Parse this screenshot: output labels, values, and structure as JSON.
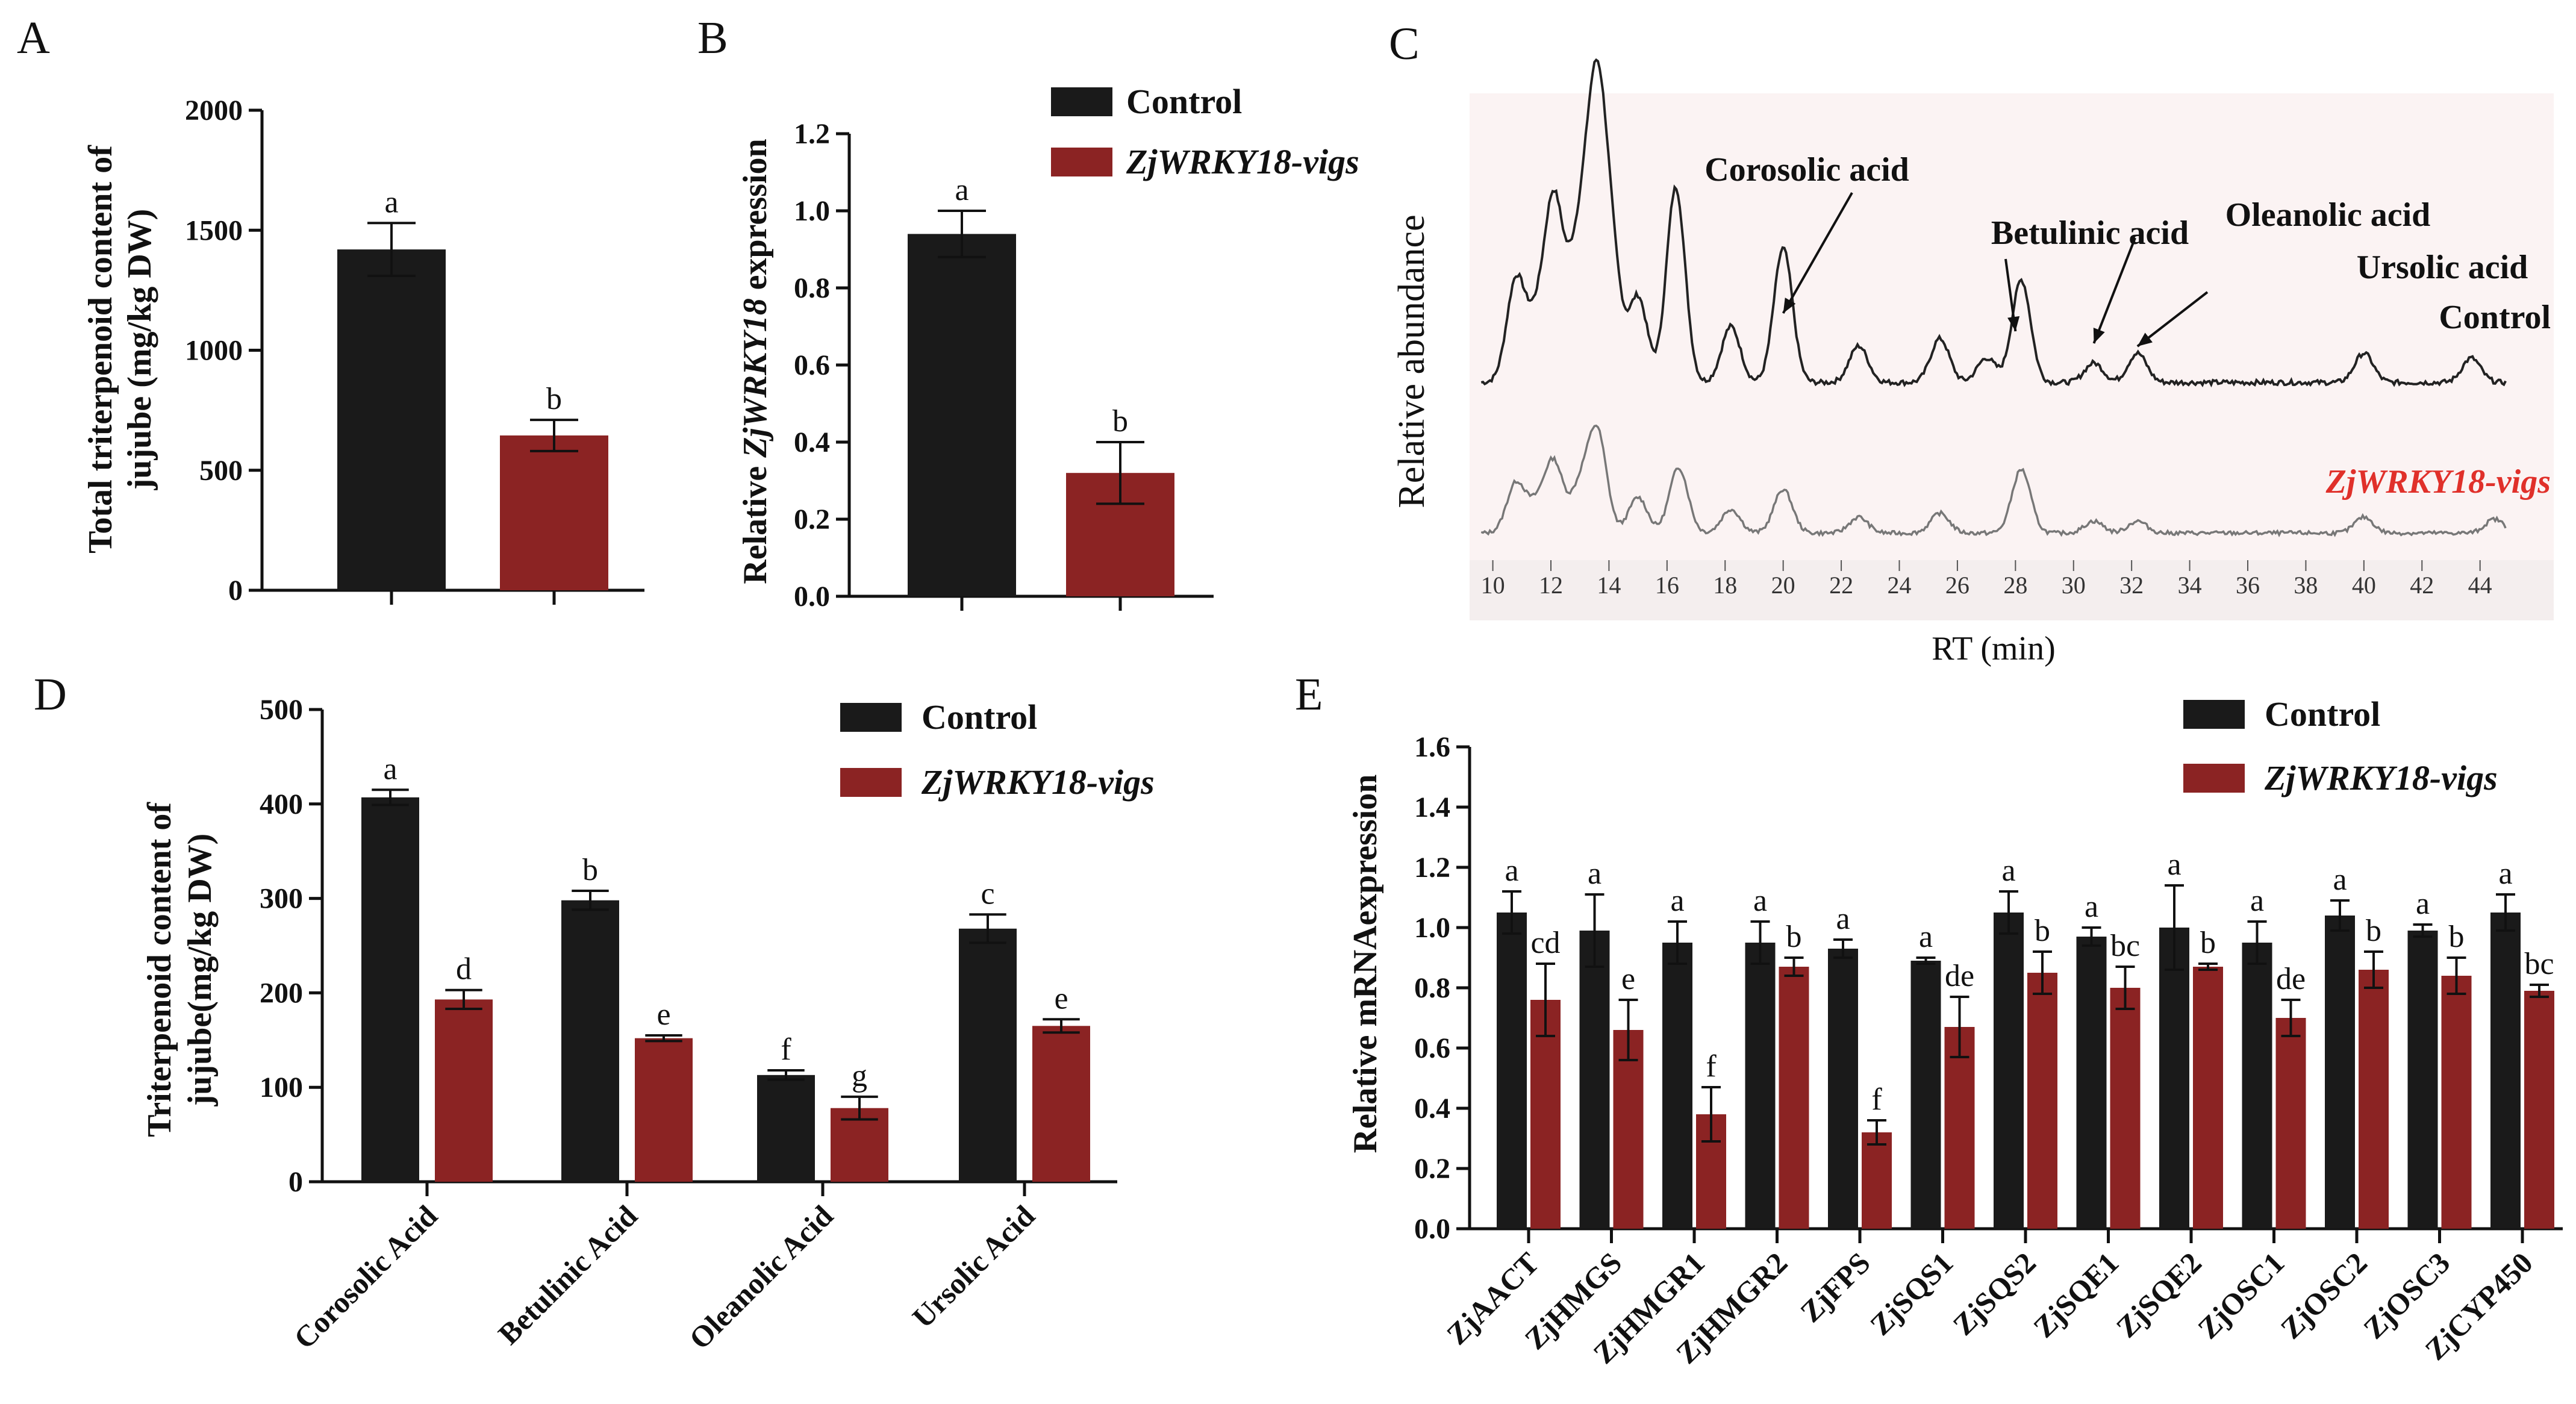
{
  "colors": {
    "control": "#1a1a1a",
    "vigs": "#8b2323",
    "vigs_label": "#e0302a",
    "trace_control": "#222222",
    "trace_vigs": "#777777",
    "chrom_bg": "#fbf3f3"
  },
  "legend": {
    "control": "Control",
    "vigs": "ZjWRKY18-vigs"
  },
  "chart_data": [
    {
      "panel": "A",
      "type": "bar",
      "categories": [
        "Control",
        "ZjWRKY18-vigs"
      ],
      "values": [
        1420,
        645
      ],
      "errors": [
        110,
        65
      ],
      "letters": [
        "a",
        "b"
      ],
      "ylabel_line1": "Total triterpenoid content of",
      "ylabel_line2": "jujube (mg/kg DW)",
      "ylim": [
        0,
        2000
      ],
      "yticks": [
        "0",
        "500",
        "1000",
        "1500",
        "2000"
      ]
    },
    {
      "panel": "B",
      "type": "bar",
      "categories": [
        "Control",
        "ZjWRKY18-vigs"
      ],
      "values": [
        0.94,
        0.32
      ],
      "errors": [
        0.06,
        0.08
      ],
      "letters": [
        "a",
        "b"
      ],
      "ylabel_prefix": "Relative ",
      "ylabel_gene": "ZjWRKY18",
      "ylabel_suffix": " expression",
      "ylim": [
        0,
        1.2
      ],
      "yticks": [
        "0.0",
        "0.2",
        "0.4",
        "0.6",
        "0.8",
        "1.0",
        "1.2"
      ]
    },
    {
      "panel": "C",
      "type": "line",
      "ylabel": "Relative abundance",
      "xlabel": "RT (min)",
      "xlim": [
        9.2,
        45.5
      ],
      "xticks": [
        "10",
        "12",
        "14",
        "16",
        "18",
        "20",
        "22",
        "24",
        "26",
        "28",
        "30",
        "32",
        "34",
        "36",
        "38",
        "40",
        "42",
        "44"
      ],
      "peak_labels": [
        "Corosolic acid",
        "Betulinic acid",
        "Oleanolic acid",
        "Ursolic acid"
      ],
      "peak_rt": [
        20.0,
        28.0,
        30.7,
        32.2
      ],
      "series": [
        {
          "name": "Control",
          "peaks": [
            [
              10.8,
              0.42
            ],
            [
              11.5,
              0.22
            ],
            [
              12.1,
              0.72
            ],
            [
              12.8,
              0.35
            ],
            [
              13.2,
              0.38
            ],
            [
              13.6,
              1.0
            ],
            [
              14.1,
              0.45
            ],
            [
              15.0,
              0.35
            ],
            [
              16.3,
              0.8
            ],
            [
              18.2,
              0.23
            ],
            [
              20.0,
              0.55
            ],
            [
              22.6,
              0.15
            ],
            [
              25.4,
              0.18
            ],
            [
              27.0,
              0.1
            ],
            [
              28.2,
              0.42
            ],
            [
              30.7,
              0.08
            ],
            [
              32.2,
              0.12
            ],
            [
              40.0,
              0.12
            ],
            [
              43.7,
              0.1
            ]
          ]
        },
        {
          "name": "ZjWRKY18-vigs",
          "peaks": [
            [
              10.8,
              0.25
            ],
            [
              11.5,
              0.12
            ],
            [
              12.1,
              0.35
            ],
            [
              13.0,
              0.22
            ],
            [
              13.6,
              0.5
            ],
            [
              15.0,
              0.18
            ],
            [
              16.4,
              0.33
            ],
            [
              18.2,
              0.12
            ],
            [
              20.0,
              0.22
            ],
            [
              22.6,
              0.08
            ],
            [
              25.4,
              0.1
            ],
            [
              28.2,
              0.32
            ],
            [
              30.7,
              0.06
            ],
            [
              32.2,
              0.06
            ],
            [
              40.0,
              0.08
            ],
            [
              44.5,
              0.07
            ]
          ]
        }
      ]
    },
    {
      "panel": "D",
      "type": "bar",
      "categories": [
        "Corosolic Acid",
        "Betulinic Acid",
        "Oleanolic Acid",
        "Ursolic Acid"
      ],
      "series": [
        {
          "name": "Control",
          "values": [
            407,
            298,
            113,
            268
          ],
          "errors": [
            8,
            10,
            5,
            15
          ],
          "letters": [
            "a",
            "b",
            "f",
            "c"
          ]
        },
        {
          "name": "ZjWRKY18-vigs",
          "values": [
            193,
            152,
            78,
            165
          ],
          "errors": [
            10,
            3,
            12,
            7
          ],
          "letters": [
            "d",
            "e",
            "g",
            "e"
          ]
        }
      ],
      "ylabel_line1": "Triterpenoid content of",
      "ylabel_line2": "jujube(mg/kg DW)",
      "ylim": [
        0,
        500
      ],
      "yticks": [
        "0",
        "100",
        "200",
        "300",
        "400",
        "500"
      ]
    },
    {
      "panel": "E",
      "type": "bar",
      "categories": [
        "ZjAACT",
        "ZjHMGS",
        "ZjHMGR1",
        "ZjHMGR2",
        "ZjFPS",
        "ZjSQS1",
        "ZjSQS2",
        "ZjSQE1",
        "ZjSQE2",
        "ZjOSC1",
        "ZjOSC2",
        "ZjOSC3",
        "ZjCYP450"
      ],
      "series": [
        {
          "name": "Control",
          "values": [
            1.05,
            0.99,
            0.95,
            0.95,
            0.93,
            0.89,
            1.05,
            0.97,
            1.0,
            0.95,
            1.04,
            0.99,
            1.05
          ],
          "errors": [
            0.07,
            0.12,
            0.07,
            0.07,
            0.03,
            0.01,
            0.07,
            0.03,
            0.14,
            0.07,
            0.05,
            0.02,
            0.06
          ],
          "letters": [
            "a",
            "a",
            "a",
            "a",
            "a",
            "a",
            "a",
            "a",
            "a",
            "a",
            "a",
            "a",
            "a"
          ]
        },
        {
          "name": "ZjWRKY18-vigs",
          "values": [
            0.76,
            0.66,
            0.38,
            0.87,
            0.32,
            0.67,
            0.85,
            0.8,
            0.87,
            0.7,
            0.86,
            0.84,
            0.79
          ],
          "errors": [
            0.12,
            0.1,
            0.09,
            0.03,
            0.04,
            0.1,
            0.07,
            0.07,
            0.01,
            0.06,
            0.06,
            0.06,
            0.02
          ],
          "letters": [
            "cd",
            "e",
            "f",
            "b",
            "f",
            "de",
            "b",
            "bc",
            "b",
            "de",
            "b",
            "b",
            "bc"
          ]
        }
      ],
      "ylabel": "Relative mRNAexpression",
      "ylim": [
        0,
        1.6
      ],
      "yticks": [
        "0.0",
        "0.2",
        "0.4",
        "0.6",
        "0.8",
        "1.0",
        "1.2",
        "1.4",
        "1.6"
      ]
    }
  ]
}
